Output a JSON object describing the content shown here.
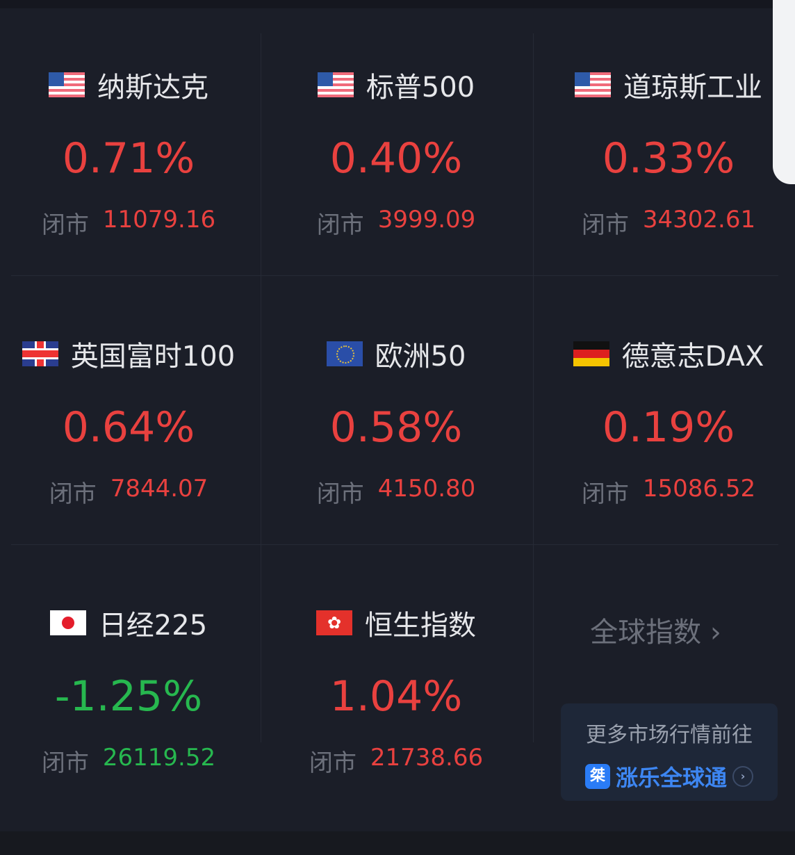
{
  "close_label": "闭市",
  "colors": {
    "up": "#e9413f",
    "down": "#27b84f",
    "background": "#1b1e28"
  },
  "indices": [
    {
      "name": "纳斯达克",
      "flag": "us-flag-icon",
      "change": "0.71%",
      "close": "11079.16",
      "direction": "up"
    },
    {
      "name": "标普500",
      "flag": "us-flag-icon",
      "change": "0.40%",
      "close": "3999.09",
      "direction": "up"
    },
    {
      "name": "道琼斯工业",
      "flag": "us-flag-icon",
      "change": "0.33%",
      "close": "34302.61",
      "direction": "up"
    },
    {
      "name": "英国富时100",
      "flag": "uk-flag-icon",
      "change": "0.64%",
      "close": "7844.07",
      "direction": "up"
    },
    {
      "name": "欧洲50",
      "flag": "eu-flag-icon",
      "change": "0.58%",
      "close": "4150.80",
      "direction": "up"
    },
    {
      "name": "德意志DAX",
      "flag": "de-flag-icon",
      "change": "0.19%",
      "close": "15086.52",
      "direction": "up"
    },
    {
      "name": "日经225",
      "flag": "jp-flag-icon",
      "change": "-1.25%",
      "close": "26119.52",
      "direction": "down"
    },
    {
      "name": "恒生指数",
      "flag": "hk-flag-icon",
      "change": "1.04%",
      "close": "21738.66",
      "direction": "up"
    }
  ],
  "global": {
    "label": "全球指数",
    "chevron": "›"
  },
  "promo": {
    "line1": "更多市场行情前往",
    "logo_text": "桀",
    "app_name": "涨乐全球通",
    "arrow": "›"
  }
}
